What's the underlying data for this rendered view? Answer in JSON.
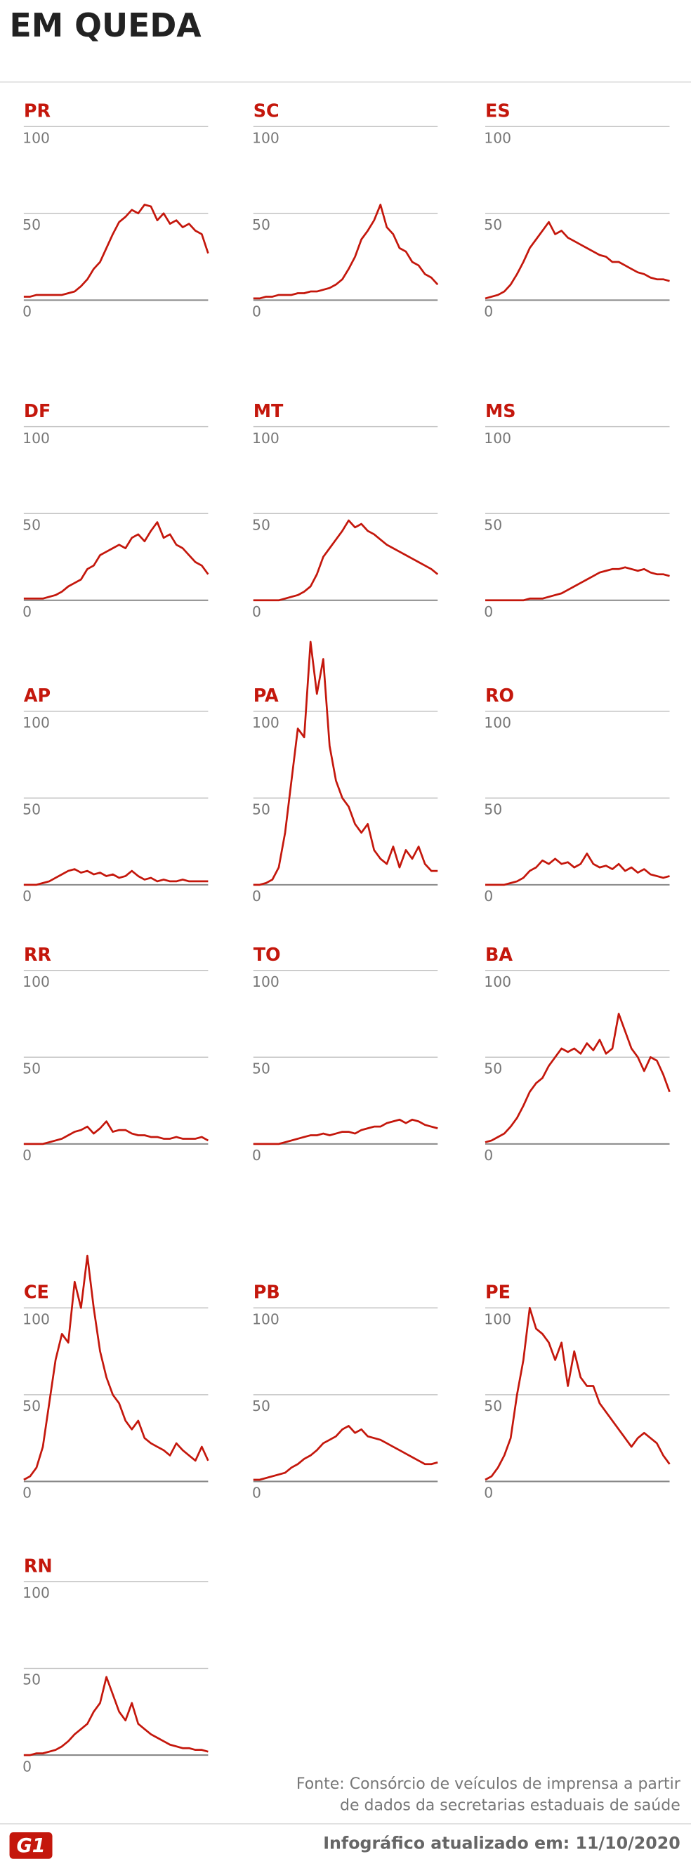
{
  "title": "EM QUEDA",
  "source": [
    "Fonte: Consórcio de veículos de imprensa a partir",
    "de dados da secretarias estaduais de saúde"
  ],
  "logo": "G1",
  "footer": "Infográfico atualizado em: 11/10/2020",
  "chart_data": [
    {
      "type": "line",
      "title": "PR",
      "color": "#c4170c",
      "ylim": [
        0,
        100
      ],
      "yticks": [
        0,
        50,
        100
      ],
      "values": [
        2,
        2,
        3,
        3,
        3,
        3,
        3,
        4,
        5,
        8,
        12,
        18,
        22,
        30,
        38,
        45,
        48,
        52,
        50,
        55,
        54,
        46,
        50,
        44,
        46,
        42,
        44,
        40,
        38,
        27
      ]
    },
    {
      "type": "line",
      "title": "SC",
      "color": "#c4170c",
      "ylim": [
        0,
        100
      ],
      "yticks": [
        0,
        50,
        100
      ],
      "values": [
        1,
        1,
        2,
        2,
        3,
        3,
        3,
        4,
        4,
        5,
        5,
        6,
        7,
        9,
        12,
        18,
        25,
        35,
        40,
        46,
        55,
        42,
        38,
        30,
        28,
        22,
        20,
        15,
        13,
        9
      ]
    },
    {
      "type": "line",
      "title": "ES",
      "color": "#c4170c",
      "ylim": [
        0,
        100
      ],
      "yticks": [
        0,
        50,
        100
      ],
      "values": [
        1,
        2,
        3,
        5,
        9,
        15,
        22,
        30,
        35,
        40,
        45,
        38,
        40,
        36,
        34,
        32,
        30,
        28,
        26,
        25,
        22,
        22,
        20,
        18,
        16,
        15,
        13,
        12,
        12,
        11
      ]
    },
    {
      "type": "line",
      "title": "DF",
      "color": "#c4170c",
      "ylim": [
        0,
        100
      ],
      "yticks": [
        0,
        50,
        100
      ],
      "values": [
        1,
        1,
        1,
        1,
        2,
        3,
        5,
        8,
        10,
        12,
        18,
        20,
        26,
        28,
        30,
        32,
        30,
        36,
        38,
        34,
        40,
        45,
        36,
        38,
        32,
        30,
        26,
        22,
        20,
        15
      ]
    },
    {
      "type": "line",
      "title": "MT",
      "color": "#c4170c",
      "ylim": [
        0,
        100
      ],
      "yticks": [
        0,
        50,
        100
      ],
      "values": [
        0,
        0,
        0,
        0,
        0,
        1,
        2,
        3,
        5,
        8,
        15,
        25,
        30,
        35,
        40,
        46,
        42,
        44,
        40,
        38,
        35,
        32,
        30,
        28,
        26,
        24,
        22,
        20,
        18,
        15
      ]
    },
    {
      "type": "line",
      "title": "MS",
      "color": "#c4170c",
      "ylim": [
        0,
        100
      ],
      "yticks": [
        0,
        50,
        100
      ],
      "values": [
        0,
        0,
        0,
        0,
        0,
        0,
        0,
        1,
        1,
        1,
        2,
        3,
        4,
        6,
        8,
        10,
        12,
        14,
        16,
        17,
        18,
        18,
        19,
        18,
        17,
        18,
        16,
        15,
        15,
        14
      ]
    },
    {
      "type": "line",
      "title": "AP",
      "color": "#c4170c",
      "ylim": [
        0,
        100
      ],
      "yticks": [
        0,
        50,
        100
      ],
      "values": [
        0,
        0,
        0,
        1,
        2,
        4,
        6,
        8,
        9,
        7,
        8,
        6,
        7,
        5,
        6,
        4,
        5,
        8,
        5,
        3,
        4,
        2,
        3,
        2,
        2,
        3,
        2,
        2,
        2,
        2
      ]
    },
    {
      "type": "line",
      "title": "PA",
      "color": "#c4170c",
      "ylim": [
        0,
        100
      ],
      "yticks": [
        0,
        50,
        100
      ],
      "values": [
        0,
        0,
        1,
        3,
        10,
        30,
        60,
        90,
        85,
        140,
        110,
        130,
        80,
        60,
        50,
        45,
        35,
        30,
        35,
        20,
        15,
        12,
        22,
        10,
        20,
        15,
        22,
        12,
        8,
        8
      ]
    },
    {
      "type": "line",
      "title": "RO",
      "color": "#c4170c",
      "ylim": [
        0,
        100
      ],
      "yticks": [
        0,
        50,
        100
      ],
      "values": [
        0,
        0,
        0,
        0,
        1,
        2,
        4,
        8,
        10,
        14,
        12,
        15,
        12,
        13,
        10,
        12,
        18,
        12,
        10,
        11,
        9,
        12,
        8,
        10,
        7,
        9,
        6,
        5,
        4,
        5
      ]
    },
    {
      "type": "line",
      "title": "RR",
      "color": "#c4170c",
      "ylim": [
        0,
        100
      ],
      "yticks": [
        0,
        50,
        100
      ],
      "values": [
        0,
        0,
        0,
        0,
        1,
        2,
        3,
        5,
        7,
        8,
        10,
        6,
        9,
        13,
        7,
        8,
        8,
        6,
        5,
        5,
        4,
        4,
        3,
        3,
        4,
        3,
        3,
        3,
        4,
        2
      ]
    },
    {
      "type": "line",
      "title": "TO",
      "color": "#c4170c",
      "ylim": [
        0,
        100
      ],
      "yticks": [
        0,
        50,
        100
      ],
      "values": [
        0,
        0,
        0,
        0,
        0,
        1,
        2,
        3,
        4,
        5,
        5,
        6,
        5,
        6,
        7,
        7,
        6,
        8,
        9,
        10,
        10,
        12,
        13,
        14,
        12,
        14,
        13,
        11,
        10,
        9
      ]
    },
    {
      "type": "line",
      "title": "BA",
      "color": "#c4170c",
      "ylim": [
        0,
        100
      ],
      "yticks": [
        0,
        50,
        100
      ],
      "values": [
        1,
        2,
        4,
        6,
        10,
        15,
        22,
        30,
        35,
        38,
        45,
        50,
        55,
        53,
        55,
        52,
        58,
        54,
        60,
        52,
        55,
        75,
        65,
        55,
        50,
        42,
        50,
        48,
        40,
        30
      ]
    },
    {
      "type": "line",
      "title": "CE",
      "color": "#c4170c",
      "ylim": [
        0,
        100
      ],
      "yticks": [
        0,
        50,
        100
      ],
      "values": [
        1,
        3,
        8,
        20,
        45,
        70,
        85,
        80,
        115,
        100,
        130,
        100,
        75,
        60,
        50,
        45,
        35,
        30,
        35,
        25,
        22,
        20,
        18,
        15,
        22,
        18,
        15,
        12,
        20,
        12
      ]
    },
    {
      "type": "line",
      "title": "PB",
      "color": "#c4170c",
      "ylim": [
        0,
        100
      ],
      "yticks": [
        0,
        50,
        100
      ],
      "values": [
        1,
        1,
        2,
        3,
        4,
        5,
        8,
        10,
        13,
        15,
        18,
        22,
        24,
        26,
        30,
        32,
        28,
        30,
        26,
        25,
        24,
        22,
        20,
        18,
        16,
        14,
        12,
        10,
        10,
        11
      ]
    },
    {
      "type": "line",
      "title": "PE",
      "color": "#c4170c",
      "ylim": [
        0,
        100
      ],
      "yticks": [
        0,
        50,
        100
      ],
      "values": [
        1,
        3,
        8,
        15,
        25,
        50,
        70,
        100,
        88,
        85,
        80,
        70,
        80,
        55,
        75,
        60,
        55,
        55,
        45,
        40,
        35,
        30,
        25,
        20,
        25,
        28,
        25,
        22,
        15,
        10
      ]
    },
    {
      "type": "line",
      "title": "RN",
      "color": "#c4170c",
      "ylim": [
        0,
        100
      ],
      "yticks": [
        0,
        50,
        100
      ],
      "values": [
        0,
        0,
        1,
        1,
        2,
        3,
        5,
        8,
        12,
        15,
        18,
        25,
        30,
        45,
        35,
        25,
        20,
        30,
        18,
        15,
        12,
        10,
        8,
        6,
        5,
        4,
        4,
        3,
        3,
        2
      ]
    }
  ]
}
